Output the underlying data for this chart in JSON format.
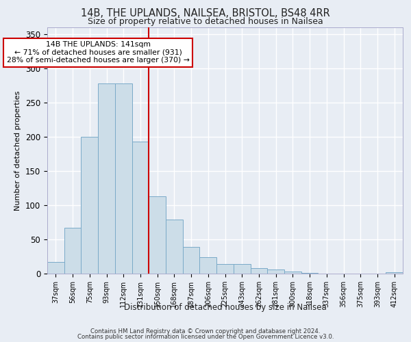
{
  "title_line1": "14B, THE UPLANDS, NAILSEA, BRISTOL, BS48 4RR",
  "title_line2": "Size of property relative to detached houses in Nailsea",
  "xlabel": "Distribution of detached houses by size in Nailsea",
  "ylabel": "Number of detached properties",
  "footnote1": "Contains HM Land Registry data © Crown copyright and database right 2024.",
  "footnote2": "Contains public sector information licensed under the Open Government Licence v3.0.",
  "bar_labels": [
    "37sqm",
    "56sqm",
    "75sqm",
    "93sqm",
    "112sqm",
    "131sqm",
    "150sqm",
    "168sqm",
    "187sqm",
    "206sqm",
    "225sqm",
    "243sqm",
    "262sqm",
    "281sqm",
    "300sqm",
    "318sqm",
    "337sqm",
    "356sqm",
    "375sqm",
    "393sqm",
    "412sqm"
  ],
  "bar_values": [
    17,
    67,
    200,
    278,
    278,
    193,
    113,
    79,
    39,
    24,
    14,
    14,
    8,
    6,
    3,
    1,
    0,
    0,
    0,
    0,
    2
  ],
  "bar_color": "#ccdde8",
  "bar_edge_color": "#7aaac8",
  "vline_position": 5.5,
  "vline_color": "#cc0000",
  "annotation_line1": "14B THE UPLANDS: 141sqm",
  "annotation_line2": "← 71% of detached houses are smaller (931)",
  "annotation_line3": "28% of semi-detached houses are larger (370) →",
  "annotation_box_facecolor": "#ffffff",
  "annotation_box_edgecolor": "#cc0000",
  "ylim_max": 360,
  "yticks": [
    0,
    50,
    100,
    150,
    200,
    250,
    300,
    350
  ],
  "bg_color": "#e8edf4",
  "grid_color": "#ffffff"
}
